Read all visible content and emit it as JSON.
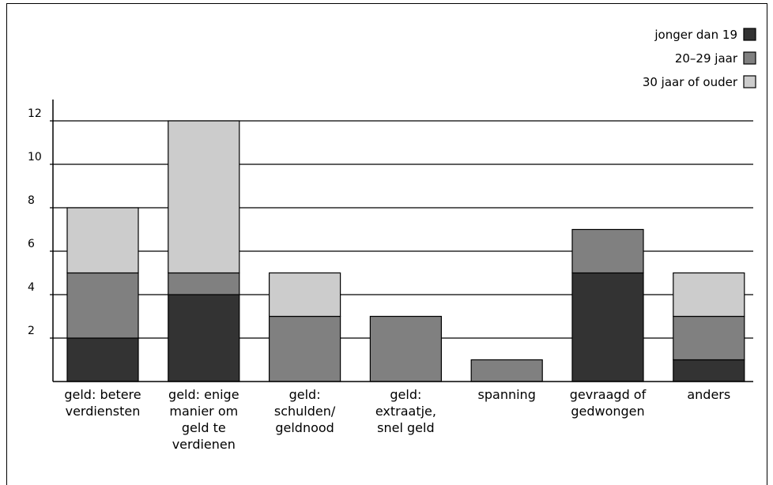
{
  "chart_data": {
    "type": "bar",
    "stacked": true,
    "categories": [
      [
        "geld: betere",
        "verdiensten"
      ],
      [
        "geld: enige",
        "manier om",
        "geld te",
        "verdienen"
      ],
      [
        "geld:",
        "schulden/",
        "geldnood"
      ],
      [
        "geld:",
        "extraatje,",
        "snel geld"
      ],
      [
        "spanning"
      ],
      [
        "gevraagd of",
        "gedwongen"
      ],
      [
        "anders"
      ]
    ],
    "series": [
      {
        "name": "jonger dan 19",
        "color": "#333333",
        "values": [
          2,
          4,
          0,
          0,
          0,
          5,
          1
        ]
      },
      {
        "name": "20–29 jaar",
        "color": "#808080",
        "values": [
          3,
          1,
          3,
          3,
          1,
          2,
          2
        ]
      },
      {
        "name": "30 jaar of ouder",
        "color": "#cccccc",
        "values": [
          3,
          7,
          2,
          0,
          0,
          0,
          2
        ]
      }
    ],
    "ylim": [
      0,
      13
    ],
    "yticks": [
      2,
      4,
      6,
      8,
      10,
      12
    ],
    "grid": true,
    "legend_position": "top-right",
    "title": "",
    "xlabel": "",
    "ylabel": ""
  }
}
